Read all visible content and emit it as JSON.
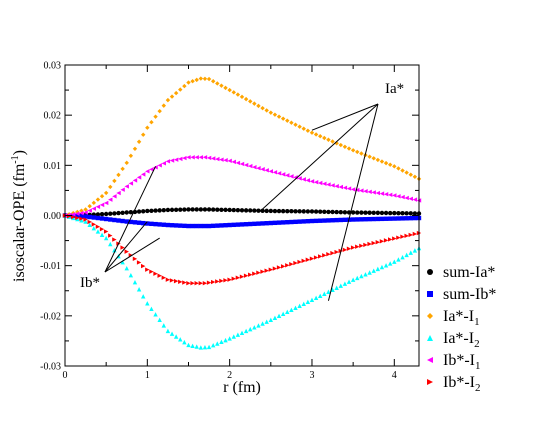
{
  "chart_data": {
    "type": "scatter",
    "xlabel": "r (fm)",
    "ylabel": "isoscalar-OPE (fm",
    "ylabel_sup": "-1",
    "ylabel_end": ")",
    "xlim": [
      0,
      4.3
    ],
    "ylim": [
      -0.03,
      0.03
    ],
    "x_ticks": [
      0,
      1,
      2,
      3,
      4
    ],
    "y_ticks": [
      -0.03,
      -0.02,
      -0.01,
      0.0,
      0.01,
      0.02,
      0.03
    ],
    "x_tick_labels": [
      "0",
      "1",
      "2",
      "3",
      "4"
    ],
    "y_tick_labels": [
      "-0.03",
      "-0.02",
      "-0.01",
      "0.00",
      "0.01",
      "0.02",
      "0.03"
    ],
    "grid": false,
    "legend_position": "bottom-right-outside",
    "annotations": [
      {
        "text": "Ia*",
        "targets": [
          [
            2.4,
            0.0013
          ],
          [
            3.0,
            0.017
          ],
          [
            3.2,
            -0.017
          ]
        ]
      },
      {
        "text": "Ib*",
        "targets": [
          [
            1.1,
            0.0098
          ],
          [
            1.15,
            -0.0045
          ],
          [
            1.0,
            -0.0012
          ]
        ]
      }
    ],
    "series": [
      {
        "name": "sum-Ia*",
        "display": "sum-Ia*",
        "sub": "",
        "color": "#000000",
        "marker": "circle",
        "x": [
          0,
          0.25,
          0.5,
          0.75,
          1.0,
          1.25,
          1.5,
          1.75,
          2.0,
          2.5,
          3.0,
          3.5,
          4.3
        ],
        "y": [
          0,
          0.0001,
          0.0003,
          0.0006,
          0.0009,
          0.0011,
          0.0012,
          0.0012,
          0.0011,
          0.0009,
          0.0008,
          0.0006,
          0.0004
        ]
      },
      {
        "name": "sum-Ib*",
        "display": "sum-Ib*",
        "sub": "",
        "color": "#0000ff",
        "marker": "square",
        "x": [
          0,
          0.25,
          0.5,
          0.75,
          1.0,
          1.25,
          1.5,
          1.75,
          2.0,
          2.5,
          3.0,
          3.5,
          4.3
        ],
        "y": [
          0,
          -0.0002,
          -0.0007,
          -0.0012,
          -0.0016,
          -0.0019,
          -0.0021,
          -0.0021,
          -0.0019,
          -0.0015,
          -0.0011,
          -0.0008,
          -0.0005
        ]
      },
      {
        "name": "Ia*-I1",
        "display": "Ia*-I",
        "sub": "1",
        "color": "#ffa500",
        "marker": "diamond",
        "x": [
          0,
          0.25,
          0.5,
          0.75,
          1.0,
          1.25,
          1.5,
          1.65,
          1.75,
          2.0,
          2.5,
          3.0,
          3.5,
          4.0,
          4.3
        ],
        "y": [
          0,
          0.0012,
          0.0045,
          0.0105,
          0.0175,
          0.023,
          0.0265,
          0.0273,
          0.0272,
          0.025,
          0.0205,
          0.0165,
          0.013,
          0.0098,
          0.0073
        ]
      },
      {
        "name": "Ia*-I2",
        "display": "Ia*-I",
        "sub": "2",
        "color": "#00ffff",
        "marker": "triangle-up",
        "x": [
          0,
          0.25,
          0.5,
          0.75,
          1.0,
          1.25,
          1.5,
          1.65,
          1.75,
          2.0,
          2.5,
          3.0,
          3.5,
          4.0,
          4.3
        ],
        "y": [
          0,
          -0.0012,
          -0.0045,
          -0.0105,
          -0.0175,
          -0.023,
          -0.0258,
          -0.0263,
          -0.0262,
          -0.0245,
          -0.0208,
          -0.0168,
          -0.0128,
          -0.0092,
          -0.0065
        ]
      },
      {
        "name": "Ib*-I1",
        "display": "Ib*-I",
        "sub": "1",
        "color": "#ff00ff",
        "marker": "triangle-left",
        "x": [
          0,
          0.25,
          0.5,
          0.75,
          1.0,
          1.25,
          1.5,
          1.7,
          2.0,
          2.5,
          3.0,
          3.5,
          4.0,
          4.3
        ],
        "y": [
          0,
          0.0006,
          0.0025,
          0.0058,
          0.0088,
          0.0108,
          0.0116,
          0.0116,
          0.0109,
          0.0088,
          0.0068,
          0.0052,
          0.004,
          0.003
        ]
      },
      {
        "name": "Ib*-I2",
        "display": "Ib*-I",
        "sub": "2",
        "color": "#ff0000",
        "marker": "triangle-right",
        "x": [
          0,
          0.25,
          0.5,
          0.75,
          1.0,
          1.25,
          1.5,
          1.7,
          2.0,
          2.5,
          3.0,
          3.5,
          4.0,
          4.3
        ],
        "y": [
          0,
          -0.0008,
          -0.0032,
          -0.0072,
          -0.0108,
          -0.0128,
          -0.0135,
          -0.0135,
          -0.0128,
          -0.0108,
          -0.0086,
          -0.0064,
          -0.0046,
          -0.0035
        ]
      }
    ]
  }
}
